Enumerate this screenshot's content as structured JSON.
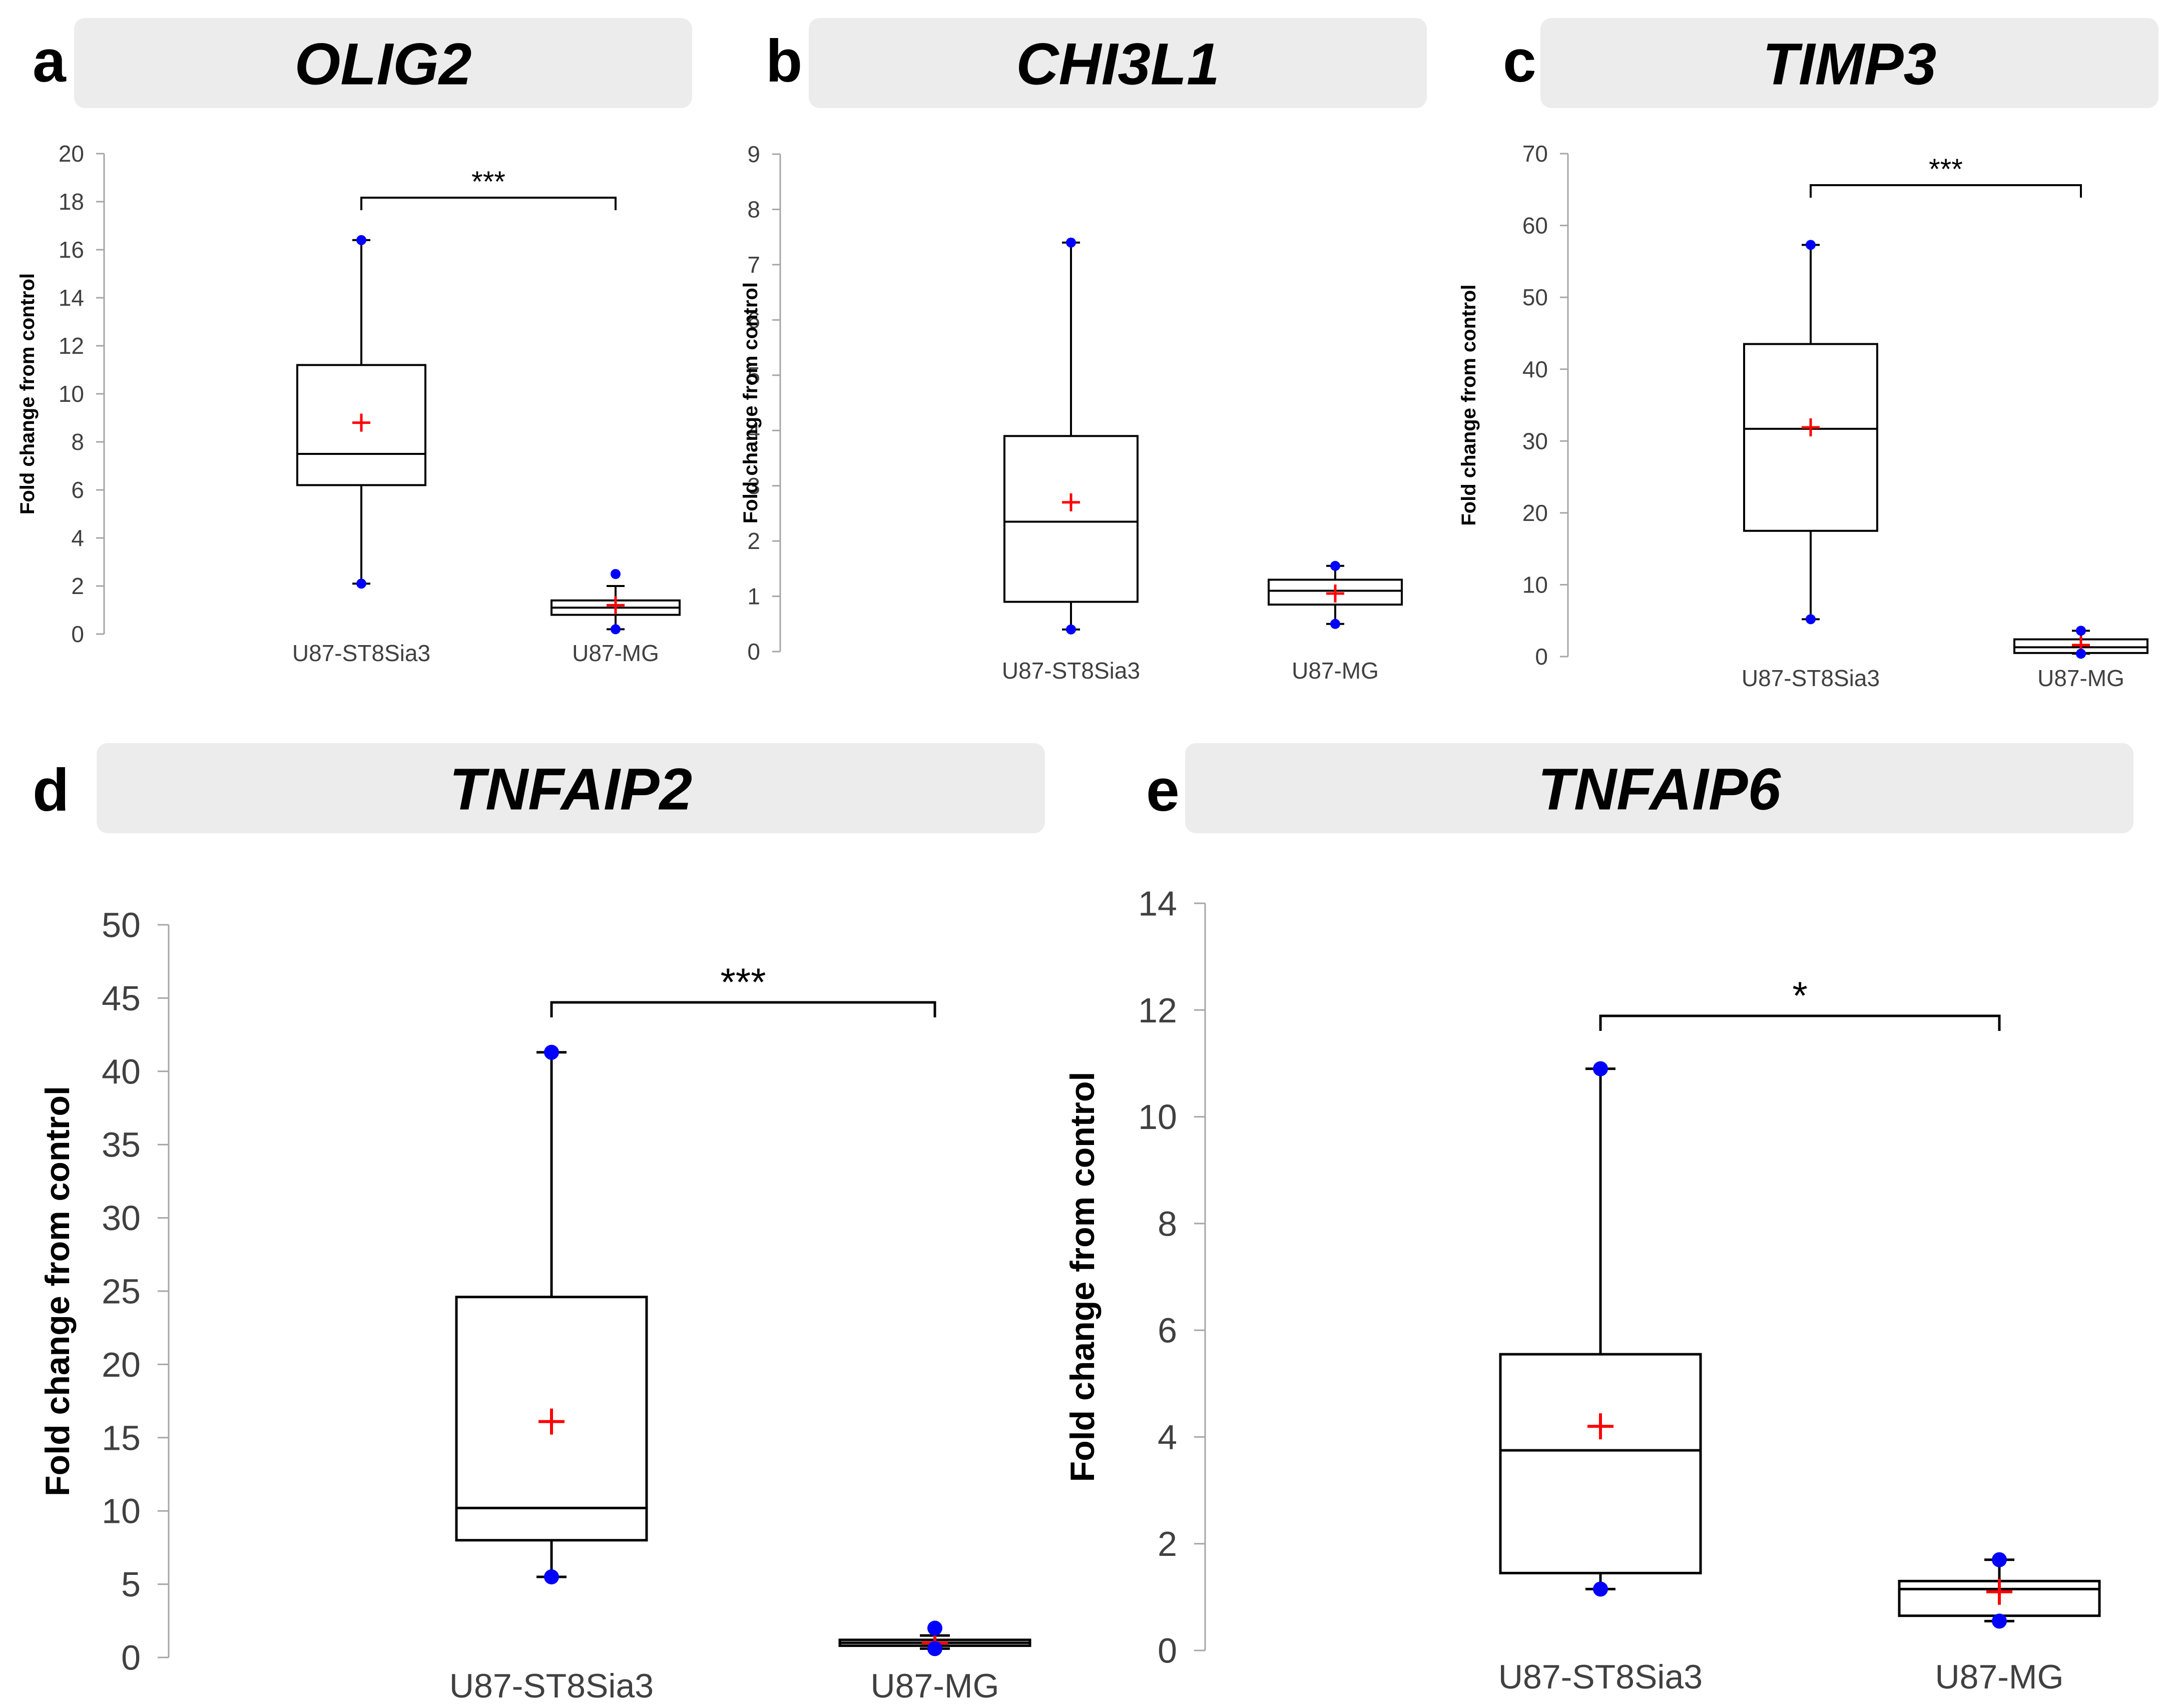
{
  "colors": {
    "header_bg": "#ececec",
    "axis": "#a6a6a6",
    "box": "#000000",
    "mean": "#ff0000",
    "extreme": "#0000ff",
    "text": "#000000",
    "tick_text": "#404040"
  },
  "chart_data": [
    {
      "panel": "a",
      "type": "box",
      "title": "OLIG2",
      "ylabel": "Fold change from control",
      "ylim": [
        0,
        20
      ],
      "yticks": [
        0,
        2,
        4,
        6,
        8,
        10,
        12,
        14,
        16,
        18,
        20
      ],
      "categories": [
        "U87-ST8Sia3",
        "U87-MG"
      ],
      "groups": [
        {
          "name": "U87-ST8Sia3",
          "min": 2.1,
          "q1": 6.2,
          "median": 7.5,
          "q3": 11.2,
          "max": 16.4,
          "mean": 8.8,
          "points": [
            2.1,
            16.4
          ]
        },
        {
          "name": "U87-MG",
          "min": 0.2,
          "q1": 0.8,
          "median": 1.1,
          "q3": 1.4,
          "max": 2.0,
          "mean": 1.2,
          "points": [
            0.2,
            2.5
          ]
        }
      ],
      "significance": "***"
    },
    {
      "panel": "b",
      "type": "box",
      "title": "CHI3L1",
      "ylabel": "Fold change from control",
      "ylim": [
        0,
        9
      ],
      "yticks": [
        0,
        1,
        2,
        3,
        4,
        5,
        6,
        7,
        8,
        9
      ],
      "categories": [
        "U87-ST8Sia3",
        "U87-MG"
      ],
      "groups": [
        {
          "name": "U87-ST8Sia3",
          "min": 0.4,
          "q1": 0.9,
          "median": 2.35,
          "q3": 3.9,
          "max": 7.4,
          "mean": 2.7,
          "points": [
            0.4,
            7.4
          ]
        },
        {
          "name": "U87-MG",
          "min": 0.5,
          "q1": 0.85,
          "median": 1.1,
          "q3": 1.3,
          "max": 1.55,
          "mean": 1.05,
          "points": [
            0.5,
            1.55
          ]
        }
      ],
      "significance": ""
    },
    {
      "panel": "c",
      "type": "box",
      "title": "TIMP3",
      "ylabel": "Fold change from control",
      "ylim": [
        0,
        70
      ],
      "yticks": [
        0,
        10,
        20,
        30,
        40,
        50,
        60,
        70
      ],
      "categories": [
        "U87-ST8Sia3",
        "U87-MG"
      ],
      "groups": [
        {
          "name": "U87-ST8Sia3",
          "min": 5.2,
          "q1": 17.5,
          "median": 31.7,
          "q3": 43.5,
          "max": 57.3,
          "mean": 31.9,
          "points": [
            5.2,
            57.3
          ]
        },
        {
          "name": "U87-MG",
          "min": 0.4,
          "q1": 0.5,
          "median": 1.3,
          "q3": 2.4,
          "max": 3.6,
          "mean": 1.6,
          "points": [
            0.4,
            3.6
          ]
        }
      ],
      "significance": "***"
    },
    {
      "panel": "d",
      "type": "box",
      "title": "TNFAIP2",
      "ylabel": "Fold change from control",
      "ylim": [
        0,
        50
      ],
      "yticks": [
        0,
        5,
        10,
        15,
        20,
        25,
        30,
        35,
        40,
        45,
        50
      ],
      "categories": [
        "U87-ST8Sia3",
        "U87-MG"
      ],
      "groups": [
        {
          "name": "U87-ST8Sia3",
          "min": 5.5,
          "q1": 8.0,
          "median": 10.2,
          "q3": 24.6,
          "max": 41.3,
          "mean": 16.1,
          "points": [
            5.5,
            41.3
          ]
        },
        {
          "name": "U87-MG",
          "min": 0.6,
          "q1": 0.8,
          "median": 1.0,
          "q3": 1.2,
          "max": 1.5,
          "mean": 1.0,
          "points": [
            0.6,
            2.0
          ]
        }
      ],
      "significance": "***"
    },
    {
      "panel": "e",
      "type": "box",
      "title": "TNFAIP6",
      "ylabel": "Fold change from control",
      "ylim": [
        0,
        14
      ],
      "yticks": [
        0,
        2,
        4,
        6,
        8,
        10,
        12,
        14
      ],
      "categories": [
        "U87-ST8Sia3",
        "U87-MG"
      ],
      "groups": [
        {
          "name": "U87-ST8Sia3",
          "min": 1.15,
          "q1": 1.45,
          "median": 3.75,
          "q3": 5.55,
          "max": 10.9,
          "mean": 4.2,
          "points": [
            1.15,
            10.9
          ]
        },
        {
          "name": "U87-MG",
          "min": 0.55,
          "q1": 0.65,
          "median": 1.15,
          "q3": 1.3,
          "max": 1.7,
          "mean": 1.1,
          "points": [
            0.55,
            1.7
          ]
        }
      ],
      "significance": "*"
    }
  ]
}
